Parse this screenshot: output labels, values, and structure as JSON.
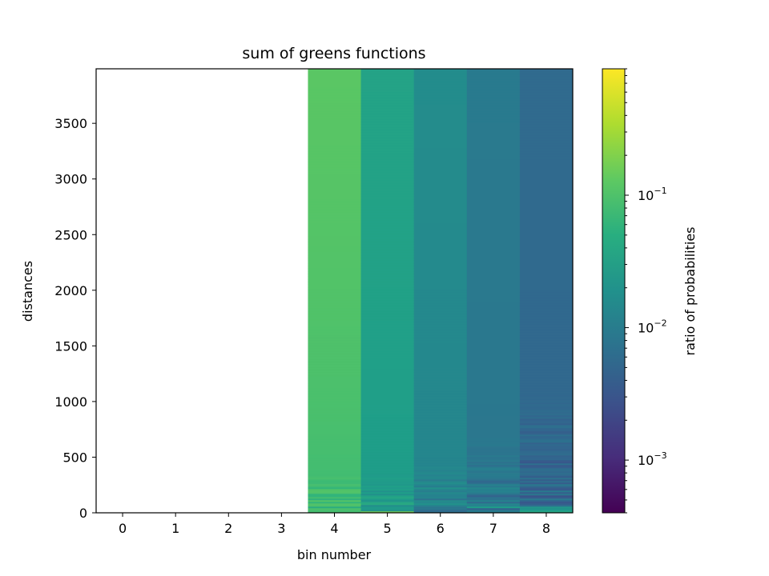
{
  "chart_data": {
    "type": "heatmap",
    "title": "sum of greens functions",
    "xlabel": "bin number",
    "ylabel": "distances",
    "x_ticks": [
      "0",
      "1",
      "2",
      "3",
      "4",
      "5",
      "6",
      "7",
      "8"
    ],
    "x_range": [
      -0.5,
      8.5
    ],
    "y_ticks": [
      "0",
      "500",
      "1000",
      "1500",
      "2000",
      "2500",
      "3000",
      "3500"
    ],
    "y_range": [
      0,
      3990
    ],
    "colorbar": {
      "label": "ratio of probabilities",
      "scale": "log",
      "colormap": "viridis",
      "range": [
        0.0004,
        0.9
      ],
      "tick_labels": [
        {
          "mantissa": "10",
          "exponent": "−3",
          "value": 0.001
        },
        {
          "mantissa": "10",
          "exponent": "−2",
          "value": 0.01
        },
        {
          "mantissa": "10",
          "exponent": "−1",
          "value": 0.1
        }
      ]
    },
    "columns": [
      {
        "bin": 0,
        "value": null
      },
      {
        "bin": 1,
        "value": null
      },
      {
        "bin": 2,
        "value": null
      },
      {
        "bin": 3,
        "value": null
      },
      {
        "bin": 4,
        "value": 0.12,
        "value_at_low_distance": 0.07,
        "noisy_below_distance": 350
      },
      {
        "bin": 5,
        "value": 0.035,
        "value_at_low_distance": 0.025,
        "noisy_below_distance": 350
      },
      {
        "bin": 6,
        "value": 0.017,
        "value_at_low_distance": 0.012,
        "noisy_below_distance": 450
      },
      {
        "bin": 7,
        "value": 0.0095,
        "value_at_low_distance": 0.008,
        "noisy_below_distance": 700
      },
      {
        "bin": 8,
        "value": 0.0058,
        "value_at_low_distance": 0.0048,
        "noisy_below_distance": 1100
      }
    ]
  }
}
